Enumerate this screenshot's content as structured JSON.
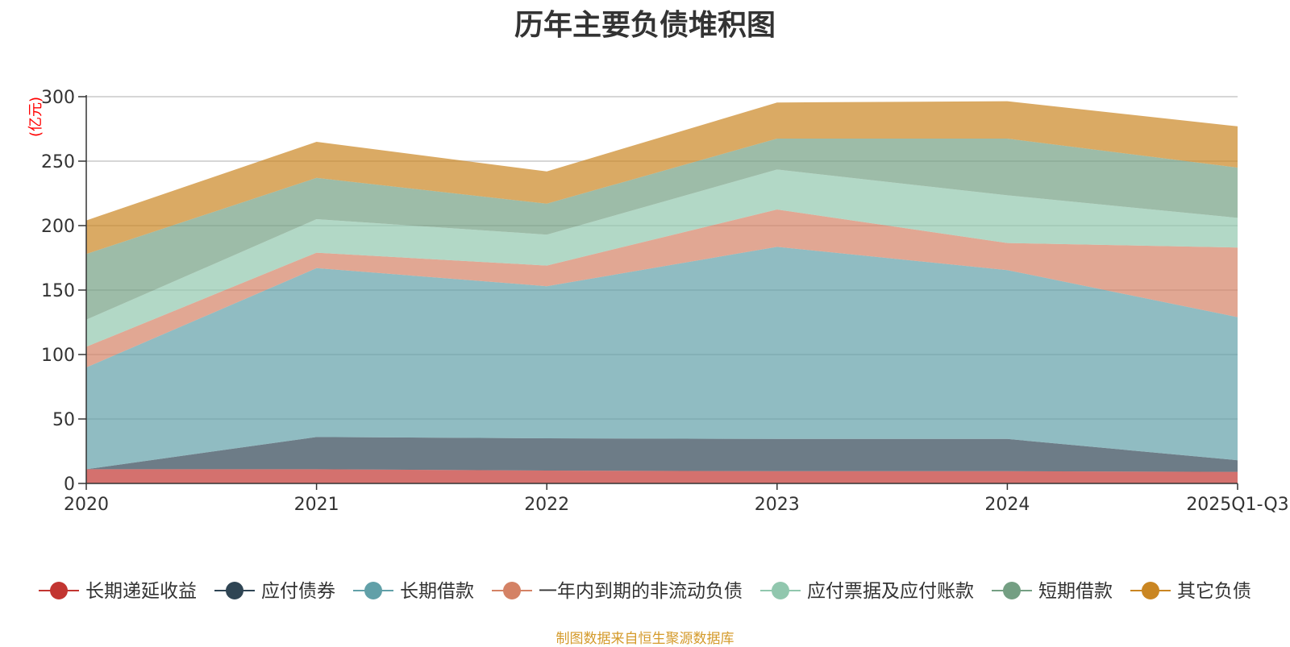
{
  "chart_data": {
    "type": "area",
    "stacked": true,
    "title": "历年主要负债堆积图",
    "unit": "(亿元)",
    "source": "制图数据来自恒生聚源数据库",
    "categories": [
      "2020",
      "2021",
      "2022",
      "2023",
      "2024",
      "2025Q1-Q3"
    ],
    "ylim": [
      0,
      300
    ],
    "yticks": [
      "0",
      "50",
      "100",
      "150",
      "200",
      "250",
      "300"
    ],
    "grid": true,
    "legend_position": "bottom",
    "series": [
      {
        "name": "长期递延收益",
        "color": "#c23531",
        "values": [
          11,
          11,
          10,
          9.5,
          9.5,
          9
        ]
      },
      {
        "name": "应付债券",
        "color": "#2f4554",
        "values": [
          0,
          25,
          25,
          25,
          25,
          9
        ]
      },
      {
        "name": "长期借款",
        "color": "#61a0a8",
        "values": [
          79,
          131,
          118,
          149,
          131,
          111
        ]
      },
      {
        "name": "一年内到期的非流动负债",
        "color": "#d48265",
        "values": [
          16,
          12,
          16,
          29,
          21,
          54
        ]
      },
      {
        "name": "应付票据及应付账款",
        "color": "#91c7ae",
        "values": [
          21,
          26,
          24,
          31,
          37,
          23
        ]
      },
      {
        "name": "短期借款",
        "color": "#749f83",
        "values": [
          51,
          32,
          24,
          24,
          44,
          39
        ]
      },
      {
        "name": "其它负债",
        "color": "#ca8622",
        "values": [
          26,
          28,
          25,
          28,
          29,
          32
        ]
      }
    ]
  }
}
